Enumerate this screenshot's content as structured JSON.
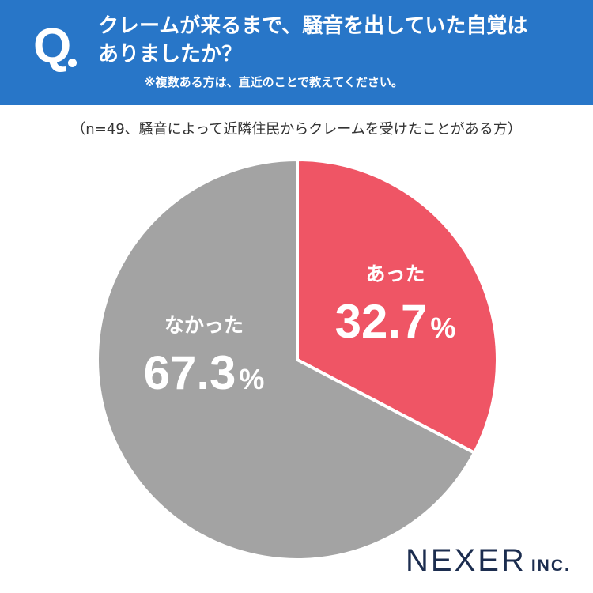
{
  "question": {
    "mark": "Q",
    "line1": "クレームが来るまで、騒音を出していた自覚は",
    "line2": "ありましたか？",
    "note": "※複数ある方は、直近のことで教えてください。"
  },
  "sample_note": "（n=49、騒音によって近隣住民からクレームを受けたことがある方）",
  "logo": {
    "main": "NEXER",
    "sub": "INC."
  },
  "colors": {
    "header": "#2876c8",
    "slice_yes": "#ef5565",
    "slice_no": "#a3a3a3",
    "logo": "#1c2d4f"
  },
  "chart_data": {
    "type": "pie",
    "start_angle": "12 o'clock, clockwise",
    "slices": [
      {
        "label": "あった",
        "value": 32.7,
        "display": "32.7",
        "unit": "%",
        "color": "#ef5565"
      },
      {
        "label": "なかった",
        "value": 67.3,
        "display": "67.3",
        "unit": "%",
        "color": "#a3a3a3"
      }
    ]
  }
}
